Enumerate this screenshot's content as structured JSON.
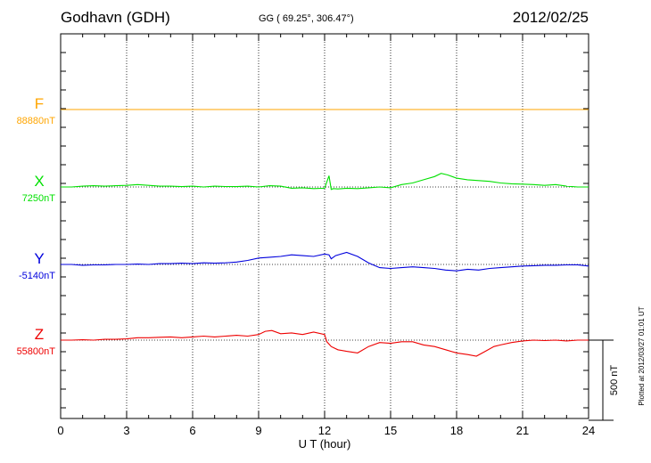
{
  "header": {
    "station": "Godhavn (GDH)",
    "coords": "GG ( 69.25°, 306.47°)",
    "date": "2012/02/25"
  },
  "plotted_note": "Plotted at 2012/03/27 01:01  UT",
  "scale_bar_label": "500 nT",
  "chart_data": {
    "type": "line",
    "xlabel": "U T (hour)",
    "xlim": [
      0,
      24
    ],
    "xticks": [
      0,
      3,
      6,
      9,
      12,
      15,
      18,
      21,
      24
    ],
    "ylim": [
      -1000,
      1000
    ],
    "ylabel": "",
    "grid": true,
    "scale_bar_nT": 500,
    "series": [
      {
        "name": "F",
        "baseline_label": "88880nT",
        "color": "#ffa500",
        "x": [
          0,
          24
        ],
        "values": [
          0,
          0
        ]
      },
      {
        "name": "X",
        "baseline_label": "7250nT",
        "color": "#00e000",
        "x": [
          0,
          0.5,
          1,
          1.5,
          2,
          2.5,
          3,
          3.5,
          4,
          4.5,
          5,
          5.5,
          6,
          6.5,
          7,
          7.5,
          8,
          8.5,
          9,
          9.5,
          10,
          10.5,
          11,
          11.5,
          12,
          12.2,
          12.3,
          12.4,
          12.6,
          13,
          13.5,
          14,
          14.5,
          15,
          15.5,
          16,
          16.5,
          17,
          17.3,
          17.6,
          18,
          18.5,
          19,
          19.5,
          20,
          20.5,
          21,
          21.5,
          22,
          22.5,
          23,
          23.5,
          24
        ],
        "values": [
          0,
          0,
          5,
          8,
          5,
          8,
          10,
          15,
          10,
          5,
          5,
          2,
          5,
          0,
          5,
          3,
          2,
          5,
          0,
          8,
          5,
          -8,
          -5,
          -10,
          -8,
          70,
          -15,
          -10,
          -12,
          -8,
          -10,
          -5,
          0,
          -5,
          15,
          25,
          45,
          65,
          85,
          75,
          55,
          45,
          40,
          35,
          25,
          20,
          18,
          15,
          10,
          15,
          5,
          0,
          0
        ]
      },
      {
        "name": "Y",
        "baseline_label": "-5140nT",
        "color": "#0000dd",
        "x": [
          0,
          0.5,
          1,
          1.5,
          2,
          2.5,
          3,
          3.5,
          4,
          4.5,
          5,
          5.5,
          6,
          6.5,
          7,
          7.5,
          8,
          8.5,
          9,
          9.5,
          10,
          10.5,
          11,
          11.5,
          12,
          12.2,
          12.3,
          12.5,
          13,
          13.5,
          14,
          14.5,
          15,
          15.5,
          16,
          16.5,
          17,
          17.5,
          18,
          18.5,
          19,
          19.5,
          20,
          20.5,
          21,
          21.5,
          22,
          22.5,
          23,
          23.5,
          24
        ],
        "values": [
          0,
          0,
          -5,
          -3,
          -2,
          0,
          0,
          2,
          0,
          5,
          5,
          8,
          5,
          10,
          8,
          10,
          15,
          25,
          40,
          45,
          50,
          60,
          55,
          50,
          65,
          60,
          35,
          55,
          75,
          50,
          10,
          -20,
          -25,
          -20,
          -15,
          -20,
          -25,
          -35,
          -40,
          -30,
          -35,
          -25,
          -20,
          -15,
          -10,
          -8,
          -5,
          -5,
          -3,
          -2,
          -10
        ]
      },
      {
        "name": "Z",
        "baseline_label": "55800nT",
        "color": "#ee0000",
        "x": [
          0,
          0.5,
          1,
          1.5,
          2,
          2.5,
          3,
          3.5,
          4,
          4.5,
          5,
          5.5,
          6,
          6.5,
          7,
          7.5,
          8,
          8.5,
          9,
          9.3,
          9.6,
          10,
          10.5,
          11,
          11.5,
          12,
          12.1,
          12.3,
          12.6,
          13,
          13.5,
          14,
          14.5,
          15,
          15.5,
          16,
          16.5,
          17,
          17.5,
          18,
          18.5,
          18.9,
          19.3,
          19.7,
          20,
          20.5,
          21,
          21.5,
          22,
          22.5,
          23,
          23.5,
          24
        ],
        "values": [
          0,
          0,
          2,
          0,
          5,
          5,
          8,
          15,
          15,
          18,
          20,
          15,
          20,
          25,
          20,
          25,
          30,
          25,
          35,
          55,
          60,
          40,
          45,
          35,
          50,
          35,
          -10,
          -40,
          -60,
          -70,
          -80,
          -40,
          -15,
          -20,
          -10,
          -10,
          -30,
          -40,
          -60,
          -80,
          -90,
          -100,
          -70,
          -40,
          -30,
          -15,
          -5,
          0,
          -3,
          0,
          -5,
          0,
          0
        ]
      }
    ],
    "time_ticks_minor": true
  }
}
